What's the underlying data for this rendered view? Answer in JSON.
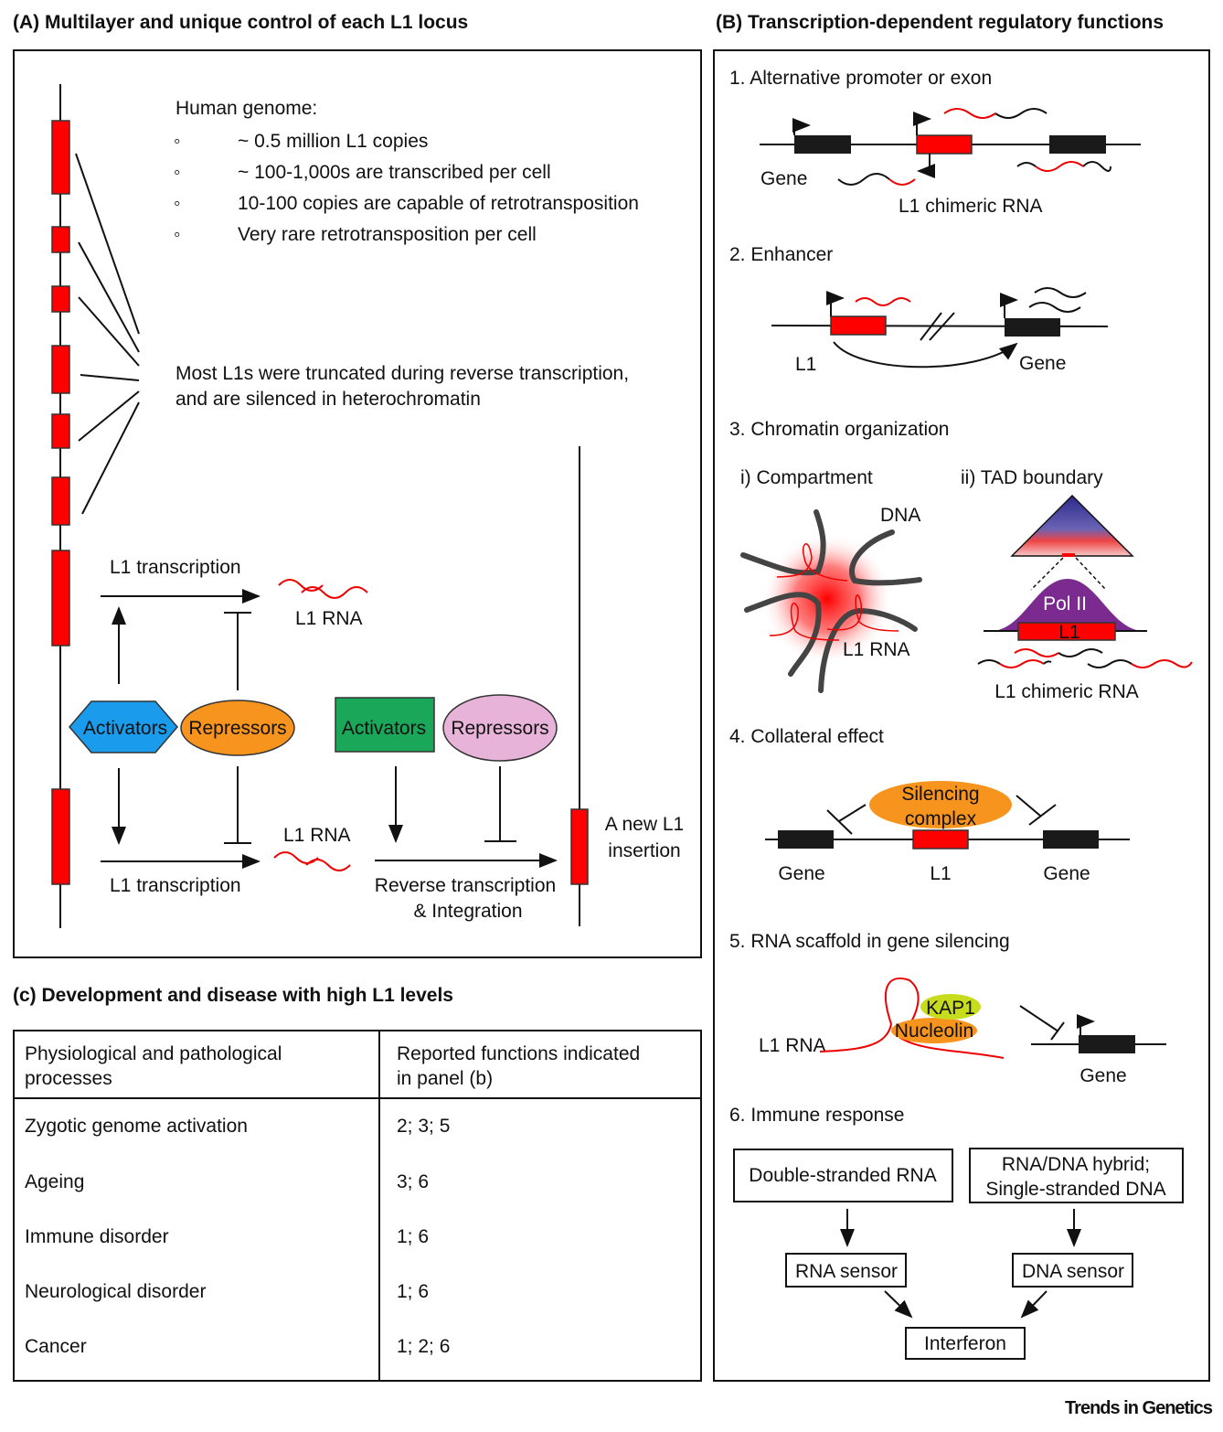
{
  "panel_a": {
    "title": "(A) Multilayer and unique control of each L1 locus",
    "genome_heading": "Human genome:",
    "bullets": [
      "~ 0.5 million L1 copies",
      "~ 100-1,000s are transcribed per cell",
      "10-100 copies are capable of retrotransposition",
      "Very rare retrotransposition per cell"
    ],
    "bullet_glyph": "◦",
    "truncated_line1": "Most L1s were truncated during reverse transcription,",
    "truncated_line2": "and are silenced in heterochromatin",
    "top_transcription": "L1 transcription",
    "top_rna": "L1 RNA",
    "activators_1": "Activators",
    "repressors_1": "Repressors",
    "activators_2": "Activators",
    "repressors_2": "Repressors",
    "bottom_rna": "L1 RNA",
    "bottom_transcription": "L1 transcription",
    "rt_line1": "Reverse transcription",
    "rt_line2": "& Integration",
    "insertion_line1": "A new L1",
    "insertion_line2": "insertion"
  },
  "panel_b": {
    "title": "(B) Transcription-dependent regulatory functions",
    "s1": {
      "title": "1. Alternative promoter or exon",
      "gene": "Gene",
      "rna": "L1 chimeric RNA"
    },
    "s2": {
      "title": "2. Enhancer",
      "l1": "L1",
      "gene": "Gene"
    },
    "s3": {
      "title": "3. Chromatin organization",
      "sub1": "i) Compartment",
      "sub2": "ii) TAD boundary",
      "dna": "DNA",
      "rna": "L1 RNA",
      "polii": "Pol II",
      "l1": "L1",
      "chimeric": "L1 chimeric RNA"
    },
    "s4": {
      "title": "4. Collateral effect",
      "complex1": "Silencing",
      "complex2": "complex",
      "gene_left": "Gene",
      "l1": "L1",
      "gene_right": "Gene"
    },
    "s5": {
      "title": "5. RNA scaffold in gene silencing",
      "rna": "L1 RNA",
      "kap1": "KAP1",
      "nucleolin": "Nucleolin",
      "gene": "Gene"
    },
    "s6": {
      "title": "6. Immune response",
      "dsrna": "Double-stranded RNA",
      "hybrid1": "RNA/DNA hybrid;",
      "hybrid2": "Single-stranded DNA",
      "rna_sensor": "RNA sensor",
      "dna_sensor": "DNA sensor",
      "interferon": "Interferon"
    }
  },
  "panel_c": {
    "title": "(c) Development and disease with high L1 levels",
    "header": {
      "col1_line1": "Physiological and pathological",
      "col1_line2": "processes",
      "col2_line1": "Reported functions indicated",
      "col2_line2": "in panel (b)"
    },
    "rows": [
      {
        "process": "Zygotic genome activation",
        "functions": "2; 3; 5"
      },
      {
        "process": "Ageing",
        "functions": "3; 6"
      },
      {
        "process": "Immune disorder",
        "functions": "1; 6"
      },
      {
        "process": "Neurological disorder",
        "functions": "1; 6"
      },
      {
        "process": "Cancer",
        "functions": "1; 2; 6"
      }
    ]
  },
  "footer": {
    "brand": "Trends in Genetics"
  },
  "colors": {
    "l1_red": "#ff0000",
    "activator_blue": "#1a9bec",
    "repressor_orange": "#f7941d",
    "activator_green": "#1ba75a",
    "repressor_pink": "#e8b3d8",
    "polii_purple": "#7b2b8f",
    "kap1_green": "#c8dc1e"
  }
}
